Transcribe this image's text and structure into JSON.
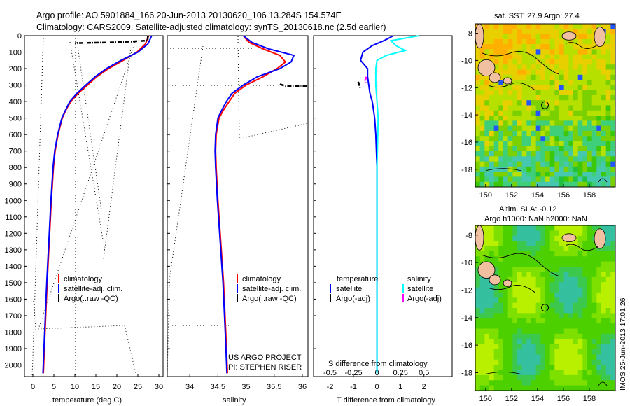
{
  "header": {
    "line1": "Argo profile: AO 5901884_166 20-Jun-2013 20130620_106 13.284S 154.574E",
    "line2": "Climatology: CARS2009. Satellite-adjusted climatology: synTS_20130618.nc (2.5d earlier)"
  },
  "side_label": "IMOS 25-Jun-2013 17:01:26",
  "colors": {
    "climatology": "#ff0000",
    "satellite": "#0000ff",
    "argo": "#000000",
    "cyan": "#00ffff",
    "magenta": "#ff00ff"
  },
  "chart_data": [
    {
      "id": "temperature",
      "type": "line",
      "xlabel": "temperature (deg C)",
      "xlim": [
        -2,
        31
      ],
      "ylim": [
        2070,
        0
      ],
      "xticks": [
        0,
        5,
        10,
        15,
        20,
        25,
        30
      ],
      "yticks": [
        0,
        100,
        200,
        300,
        400,
        500,
        600,
        700,
        800,
        900,
        1000,
        1100,
        1200,
        1300,
        1400,
        1500,
        1600,
        1700,
        1800,
        1900,
        2000
      ],
      "legend": [
        "climatology",
        "satellite-adj. clim.",
        "Argo(..raw -QC)"
      ],
      "series": [
        {
          "name": "climatology",
          "color": "#ff0000",
          "depth": [
            0,
            50,
            100,
            150,
            200,
            250,
            300,
            350,
            400,
            450,
            500,
            600,
            700,
            800,
            1000,
            1200,
            1500,
            1800,
            2050
          ],
          "values": [
            27.6,
            26.8,
            24.8,
            21.5,
            18.0,
            15.2,
            13.0,
            10.8,
            9.0,
            7.9,
            7.0,
            6.0,
            5.3,
            4.9,
            4.4,
            4.0,
            3.4,
            2.9,
            2.5
          ]
        },
        {
          "name": "satellite-adj. clim.",
          "color": "#0000ff",
          "depth": [
            0,
            50,
            100,
            150,
            200,
            250,
            300,
            350,
            400,
            450,
            500,
            600,
            700,
            800,
            1000,
            1200,
            1500,
            1800,
            2050
          ],
          "values": [
            28.3,
            27.4,
            25.0,
            21.0,
            17.5,
            14.8,
            12.6,
            10.5,
            8.8,
            7.8,
            6.9,
            5.9,
            5.2,
            4.8,
            4.3,
            3.9,
            3.3,
            2.8,
            2.4
          ]
        },
        {
          "name": "Argo(..raw -QC)",
          "color": "#000000",
          "depth": [
            0,
            30,
            40,
            45
          ],
          "values": [
            27.4,
            27.3,
            20,
            10
          ]
        }
      ]
    },
    {
      "id": "salinity",
      "type": "line",
      "xlabel": "salinity",
      "xlim": [
        33.6,
        36.1
      ],
      "ylim": [
        2070,
        0
      ],
      "xticks": [
        34,
        34.5,
        35,
        35.5,
        36
      ],
      "legend": [
        "climatology",
        "satellite-adj. clim.",
        "Argo(..raw -QC)"
      ],
      "annotation": [
        "US ARGO PROJECT",
        "PI: STEPHEN RISER"
      ],
      "series": [
        {
          "name": "climatology",
          "color": "#ff0000",
          "depth": [
            0,
            40,
            80,
            120,
            160,
            200,
            250,
            300,
            350,
            400,
            450,
            500,
            600,
            700,
            800,
            1000,
            1200,
            1500,
            1800,
            2050
          ],
          "values": [
            34.95,
            35.05,
            35.3,
            35.6,
            35.7,
            35.55,
            35.3,
            35.0,
            34.8,
            34.7,
            34.6,
            34.52,
            34.47,
            34.46,
            34.47,
            34.5,
            34.54,
            34.6,
            34.64,
            34.67
          ]
        },
        {
          "name": "satellite-adj. clim.",
          "color": "#0000ff",
          "depth": [
            0,
            40,
            80,
            120,
            160,
            200,
            250,
            300,
            350,
            400,
            450,
            500,
            600,
            700,
            800,
            1000,
            1200,
            1500,
            1800,
            2050
          ],
          "values": [
            34.95,
            35.1,
            35.4,
            35.85,
            35.8,
            35.6,
            35.2,
            34.95,
            34.75,
            34.65,
            34.57,
            34.5,
            34.46,
            34.45,
            34.46,
            34.49,
            34.53,
            34.59,
            34.63,
            34.66
          ]
        },
        {
          "name": "Argo(..raw -QC)",
          "color": "#000000",
          "depth": [
            295,
            305,
            305
          ],
          "values": [
            35.6,
            35.7,
            36.1
          ]
        }
      ]
    },
    {
      "id": "difference",
      "type": "line",
      "xlabel": "T difference from climatology",
      "top_label": "S difference from climatology",
      "xlim": [
        -2.7,
        3.2
      ],
      "ylim": [
        2070,
        0
      ],
      "xticks_T": [
        -2,
        -1,
        0,
        1,
        2
      ],
      "xticks_S": [
        "-0.5",
        "-0.25",
        "0",
        "0.25",
        "0.5"
      ],
      "legend_titles": [
        "temperature",
        "salinity"
      ],
      "legend": [
        "satellite",
        "Argo(-adj)",
        "satellite",
        "Argo(-adj)"
      ],
      "series": [
        {
          "name": "temperature satellite",
          "color": "#0000ff",
          "depth": [
            0,
            30,
            60,
            100,
            150,
            200,
            250,
            300,
            350,
            400,
            500,
            600,
            800,
            1000,
            1500,
            2050
          ],
          "values": [
            0.7,
            0.3,
            -0.2,
            -0.6,
            -0.7,
            -0.4,
            -0.4,
            -0.35,
            -0.3,
            -0.2,
            -0.1,
            -0.05,
            0.0,
            0.0,
            0.0,
            0.0
          ]
        },
        {
          "name": "temperature Argo(-adj)",
          "color": "#000000",
          "depth": [
            280,
            300,
            320
          ],
          "values": [
            -0.8,
            -0.75,
            -0.7
          ]
        },
        {
          "name": "salinity satellite",
          "color": "#00ffff",
          "depth": [
            0,
            30,
            60,
            90,
            120,
            150,
            200,
            300,
            500,
            800,
            1000,
            1500,
            2050
          ],
          "values": [
            1.8,
            0.6,
            0.8,
            1.2,
            0.4,
            0.0,
            -0.05,
            -0.05,
            0.05,
            0.0,
            0.0,
            0.0,
            0.0
          ]
        },
        {
          "name": "salinity Argo(-adj)",
          "color": "#ff00ff",
          "depth": [
            250,
            270,
            290
          ],
          "values": [
            -0.45,
            -0.5,
            -0.48
          ]
        }
      ]
    }
  ],
  "maps": [
    {
      "id": "sst",
      "title": "sat. SST: 27.9 Argo: 27.4",
      "lon_ticks": [
        150,
        152,
        154,
        156,
        158
      ],
      "lat_ticks": [
        -8,
        -10,
        -12,
        -14,
        -16,
        -18
      ],
      "lonlim": [
        149.2,
        160
      ],
      "latlim": [
        -19.3,
        -7.3
      ],
      "marker": [
        154.574,
        -13.284
      ]
    },
    {
      "id": "sla",
      "title_lines": [
        "Altim. SLA: -0.12",
        "Argo h1000: NaN h2000: NaN"
      ],
      "lon_ticks": [
        150,
        152,
        154,
        156,
        158
      ],
      "lat_ticks": [
        -8,
        -10,
        -12,
        -14,
        -16,
        -18
      ],
      "lonlim": [
        149.2,
        160
      ],
      "latlim": [
        -19.3,
        -7.3
      ],
      "marker": [
        154.574,
        -13.284
      ]
    }
  ]
}
